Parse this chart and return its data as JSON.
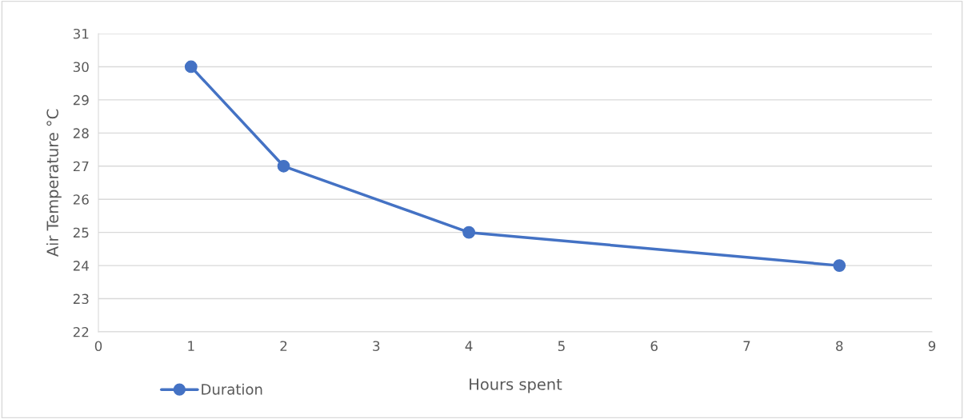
{
  "chart_data": {
    "type": "line",
    "xlabel": "Hours spent",
    "ylabel": "Air Temperature °C",
    "x": [
      1,
      2,
      4,
      8
    ],
    "series": [
      {
        "name": "Duration",
        "color": "#4472c4",
        "values": [
          30,
          27,
          25,
          24
        ]
      }
    ],
    "xlim": [
      0,
      9
    ],
    "xticks": [
      0,
      1,
      2,
      3,
      4,
      5,
      6,
      7,
      8,
      9
    ],
    "ylim": [
      22,
      31
    ],
    "yticks": [
      22,
      23,
      24,
      25,
      26,
      27,
      28,
      29,
      30,
      31
    ],
    "grid": "y",
    "legend": "bottom left",
    "marker": "circle",
    "line_style": "solid"
  }
}
